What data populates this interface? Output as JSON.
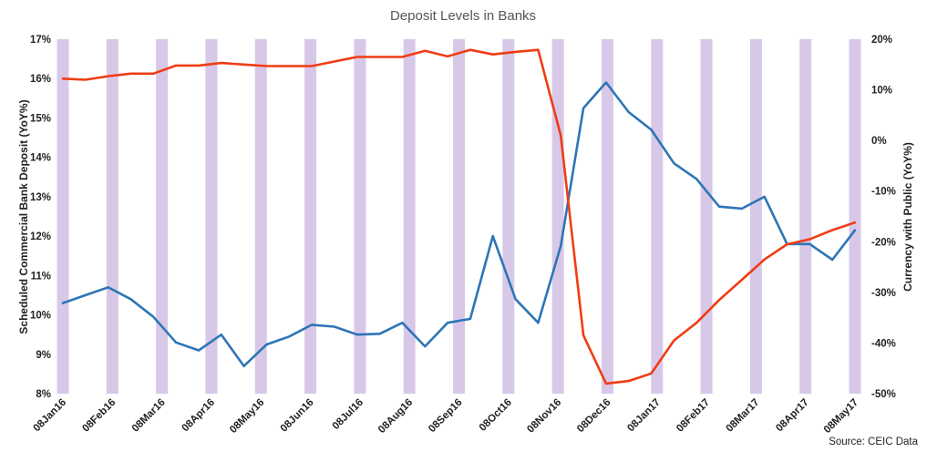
{
  "chart_data": {
    "type": "line",
    "title": "Deposit Levels in Banks",
    "source": "Source: CEIC Data",
    "ylabel_left": "Scheduled Commercial Bank Deposit (YoY%)",
    "ylabel_right": "Currency with Public (YoY%)",
    "y_left_range": [
      8,
      17
    ],
    "y_left_ticks": [
      "8%",
      "9%",
      "10%",
      "11%",
      "12%",
      "13%",
      "14%",
      "15%",
      "16%",
      "17%"
    ],
    "y_right_range": [
      -50,
      20
    ],
    "y_right_ticks": [
      "-50%",
      "-40%",
      "-30%",
      "-20%",
      "-10%",
      "0%",
      "10%",
      "20%"
    ],
    "x_labels": [
      "08Jan16",
      "08Feb16",
      "08Mar16",
      "08Apr16",
      "08May16",
      "08Jun16",
      "08Jul16",
      "08Aug16",
      "08Sep16",
      "08Oct16",
      "08Nov16",
      "08Dec16",
      "08Jan17",
      "08Feb17",
      "08Mar17",
      "08Apr17",
      "08May17"
    ],
    "grid": false,
    "legend": "none",
    "series": [
      {
        "axis": "left",
        "color": "#2e75b6",
        "values": [
          10.3,
          10.5,
          10.7,
          10.4,
          9.95,
          9.3,
          9.1,
          9.5,
          8.7,
          9.25,
          9.45,
          9.75,
          9.7,
          9.5,
          9.52,
          9.8,
          9.2,
          9.8,
          9.9,
          12.0,
          10.4,
          9.8,
          11.75,
          15.25,
          15.9,
          15.15,
          14.7,
          13.85,
          13.45,
          12.75,
          12.7,
          13.0,
          11.8,
          11.8,
          11.4,
          12.15
        ]
      },
      {
        "axis": "right",
        "color": "#f03c14",
        "values": [
          12.2,
          12.0,
          12.7,
          13.2,
          13.2,
          14.8,
          14.8,
          15.3,
          15.0,
          14.7,
          14.7,
          14.7,
          15.6,
          16.5,
          16.5,
          16.5,
          17.7,
          16.6,
          17.9,
          17.0,
          17.5,
          17.9,
          1.0,
          -38.5,
          -48.0,
          -47.5,
          -46.0,
          -39.5,
          -36.0,
          -31.5,
          -27.5,
          -23.5,
          -20.5,
          -19.5,
          -17.7,
          -16.2
        ]
      }
    ]
  }
}
